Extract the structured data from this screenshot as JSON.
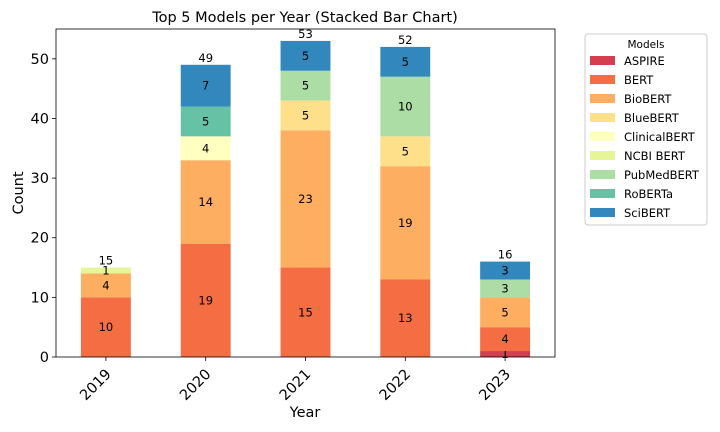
{
  "chart_data": {
    "type": "bar",
    "stacked": true,
    "title": "Top 5 Models per Year (Stacked Bar Chart)",
    "xlabel": "Year",
    "ylabel": "Count",
    "ylim": [
      0,
      55
    ],
    "yticks": [
      0,
      10,
      20,
      30,
      40,
      50
    ],
    "categories": [
      "2019",
      "2020",
      "2021",
      "2022",
      "2023"
    ],
    "totals": [
      15,
      49,
      53,
      52,
      16
    ],
    "legend": {
      "title": "Models",
      "placement": "outside-right"
    },
    "series": [
      {
        "name": "ASPIRE",
        "color": "#d53e4f",
        "values": [
          0,
          0,
          0,
          0,
          1
        ]
      },
      {
        "name": "BERT",
        "color": "#f46d43",
        "values": [
          10,
          19,
          15,
          13,
          4
        ]
      },
      {
        "name": "BioBERT",
        "color": "#fdae61",
        "values": [
          4,
          14,
          23,
          19,
          5
        ]
      },
      {
        "name": "BlueBERT",
        "color": "#fee08b",
        "values": [
          0,
          0,
          5,
          5,
          0
        ]
      },
      {
        "name": "ClinicalBERT",
        "color": "#ffffbf",
        "values": [
          0,
          4,
          0,
          0,
          0
        ]
      },
      {
        "name": "NCBI BERT",
        "color": "#e6f598",
        "values": [
          1,
          0,
          0,
          0,
          0
        ]
      },
      {
        "name": "PubMedBERT",
        "color": "#abdda4",
        "values": [
          0,
          0,
          5,
          10,
          3
        ]
      },
      {
        "name": "RoBERTa",
        "color": "#66c2a5",
        "values": [
          0,
          5,
          0,
          0,
          0
        ]
      },
      {
        "name": "SciBERT",
        "color": "#3288bd",
        "values": [
          0,
          7,
          5,
          5,
          3
        ]
      }
    ]
  }
}
